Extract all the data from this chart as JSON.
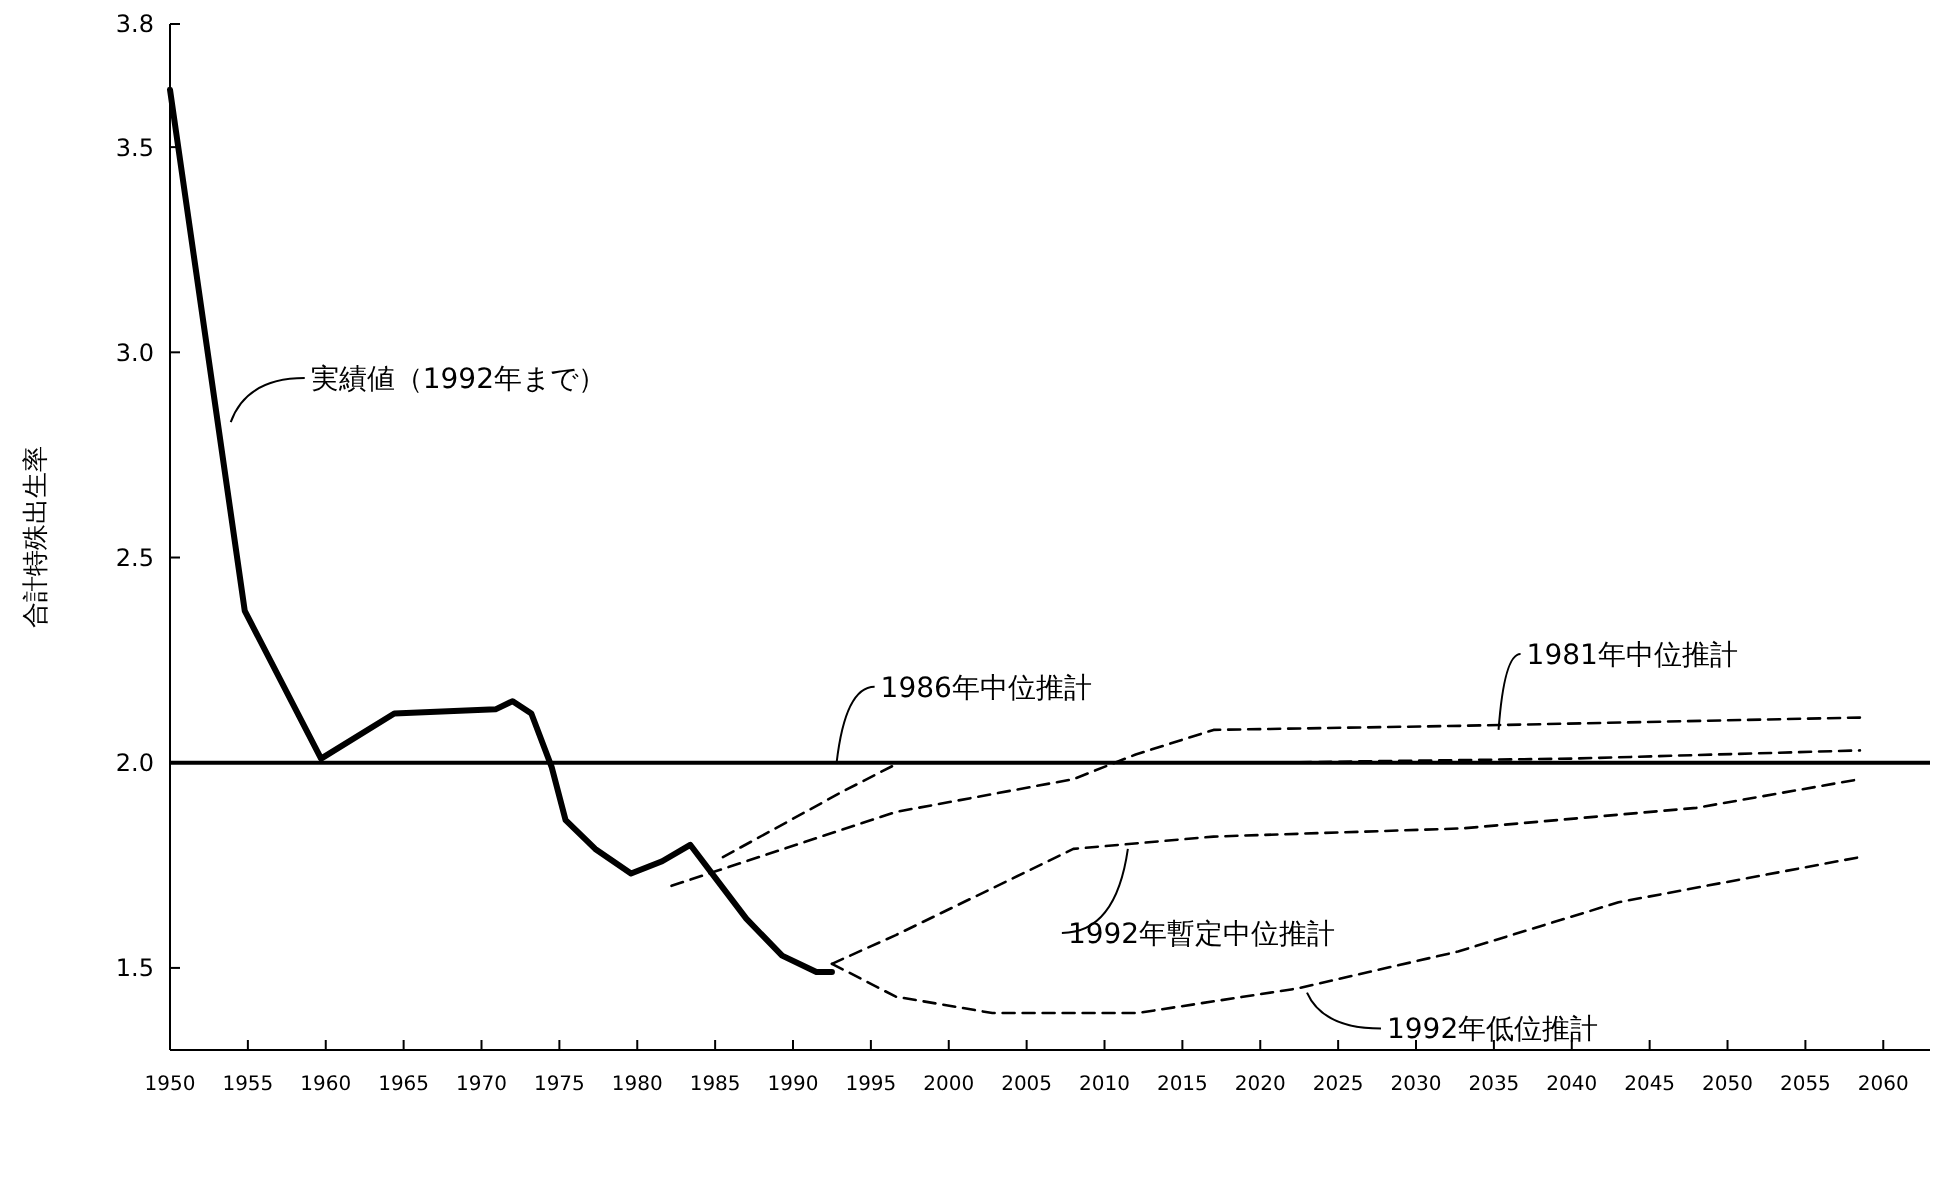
{
  "chart_data": {
    "type": "line",
    "ylabel": "合計特殊出生率",
    "xlim": [
      1950,
      2063
    ],
    "ylim": [
      1.3,
      3.8
    ],
    "xticks": [
      1950,
      1955,
      1960,
      1965,
      1970,
      1975,
      1980,
      1985,
      1990,
      1995,
      2000,
      2005,
      2010,
      2015,
      2020,
      2025,
      2030,
      2035,
      2040,
      2045,
      2050,
      2055,
      2060
    ],
    "yticks": [
      {
        "value": 1.5,
        "label": "1.5"
      },
      {
        "value": 2,
        "label": "2.0"
      },
      {
        "value": 2.5,
        "label": "2.5"
      },
      {
        "value": 3,
        "label": "3.0"
      },
      {
        "value": 3.5,
        "label": "3.5"
      },
      {
        "value": 3.8,
        "label": "3.8"
      }
    ],
    "grid": false,
    "marker": "none",
    "series": [
      {
        "color": "#000000",
        "line_style": "solid",
        "x": [
          1950,
          1954.8,
          1959.7,
          1964.4,
          1970.9,
          1972,
          1973.2,
          1974.5,
          1975.4,
          1977.3,
          1979.6,
          1981.6,
          1983.4,
          1985,
          1987,
          1989.3,
          1991.5,
          1992.5
        ],
        "values": [
          3.64,
          2.37,
          2.01,
          2.12,
          2.13,
          2.15,
          2.12,
          1.99,
          1.86,
          1.79,
          1.73,
          1.76,
          1.8,
          1.72,
          1.62,
          1.53,
          1.49,
          1.49
        ]
      },
      {
        "color": "#000000",
        "line_style": "dashed",
        "x": [
          1982.2,
          1996.6,
          2008,
          2012,
          2017,
          2033,
          2058.5
        ],
        "values": [
          1.7,
          1.88,
          1.96,
          2.02,
          2.08,
          2.09,
          2.11
        ]
      },
      {
        "color": "#000000",
        "line_style": "dashed",
        "x": [
          1985.5,
          1993.2,
          1996.8,
          2005,
          2020,
          2040,
          2058.5
        ],
        "values": [
          1.77,
          1.93,
          2.0,
          2.0,
          2.0,
          2.01,
          2.03
        ]
      },
      {
        "color": "#000000",
        "line_style": "dashed",
        "x": [
          1992.5,
          1996.6,
          2008,
          2017,
          2033,
          2048,
          2058.5
        ],
        "values": [
          1.51,
          1.58,
          1.79,
          1.82,
          1.84,
          1.89,
          1.96
        ]
      },
      {
        "color": "#000000",
        "line_style": "dashed",
        "x": [
          1992.5,
          1996.6,
          2002.8,
          2012.1,
          2022.4,
          2032.7,
          2043,
          2058.5
        ],
        "values": [
          1.51,
          1.43,
          1.39,
          1.39,
          1.45,
          1.54,
          1.66,
          1.77
        ]
      }
    ],
    "ref_lines": [
      {
        "axis": "y",
        "value": 2.0,
        "color": "#000000",
        "line_style": "solid"
      }
    ],
    "annotations": [
      {
        "text": "実績値（1992年まで）",
        "x": 1953.9,
        "y": 2.83
      },
      {
        "text": "1986年中位推計",
        "x": 1992.8,
        "y": 2.0
      },
      {
        "text": "1981年中位推計",
        "x": 2035.3,
        "y": 2.08
      },
      {
        "text": "1992年暫定中位推計",
        "x": 2011.5,
        "y": 1.79
      },
      {
        "text": "1992年低位推計",
        "x": 2023,
        "y": 1.44
      }
    ]
  }
}
